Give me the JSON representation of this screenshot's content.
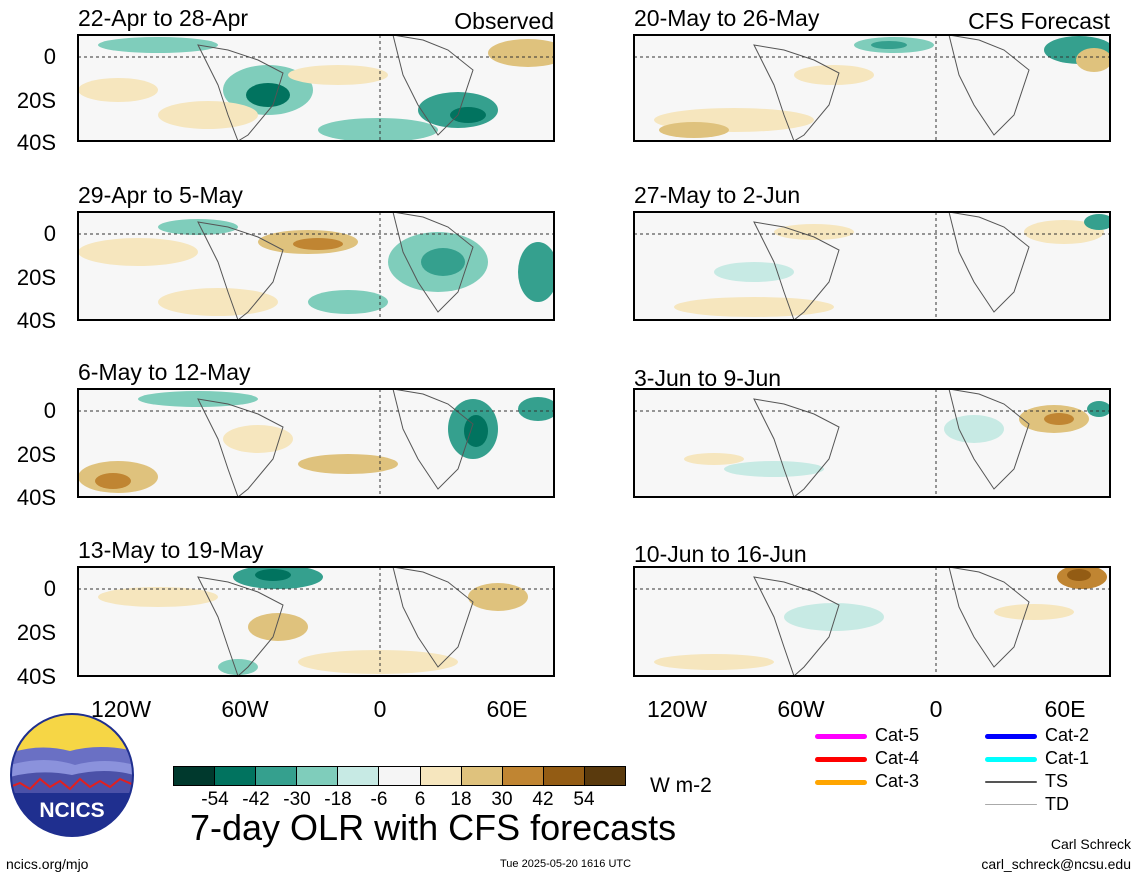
{
  "panels": {
    "observed": [
      {
        "title": "22-Apr to 28-Apr",
        "tag": "Observed"
      },
      {
        "title": "29-Apr to 5-May",
        "tag": ""
      },
      {
        "title": "6-May to 12-May",
        "tag": ""
      },
      {
        "title": "13-May to 19-May",
        "tag": ""
      }
    ],
    "forecast": [
      {
        "title": "20-May to 26-May",
        "tag": "CFS Forecast"
      },
      {
        "title": "27-May to 2-Jun",
        "tag": ""
      },
      {
        "title": "3-Jun to 9-Jun",
        "tag": ""
      },
      {
        "title": "10-Jun to 16-Jun",
        "tag": ""
      }
    ]
  },
  "y_axis_labels": [
    "0",
    "20S",
    "40S"
  ],
  "x_axis_labels": [
    "120W",
    "60W",
    "0",
    "60E"
  ],
  "colorbar": {
    "colors": [
      "#00392d",
      "#01735f",
      "#35a08e",
      "#7fcdbb",
      "#c7eae4",
      "#f5f5f5",
      "#f6e6be",
      "#dfc27d",
      "#c08532",
      "#935c14",
      "#5a3a0d"
    ],
    "ticks": [
      "-54",
      "-42",
      "-30",
      "-18",
      "-6",
      "6",
      "18",
      "30",
      "42",
      "54"
    ],
    "unit": "W m-2"
  },
  "legend": [
    {
      "label": "Cat-5",
      "color": "#ff00ff"
    },
    {
      "label": "Cat-4",
      "color": "#ff0000"
    },
    {
      "label": "Cat-3",
      "color": "#ffa500"
    },
    {
      "label": "Cat-2",
      "color": "#0000ff"
    },
    {
      "label": "Cat-1",
      "color": "#00ffff"
    },
    {
      "label": "TS",
      "color": "#555555"
    },
    {
      "label": "TD",
      "color": "#aaaaaa"
    }
  ],
  "logo_text": "NCICS",
  "main_title": "7-day OLR with CFS forecasts",
  "footer": {
    "left": "ncics.org/mjo",
    "center": "Tue 2025-05-20 1616 UTC",
    "right_name": "Carl Schreck",
    "right_email": "carl_schreck@ncsu.edu"
  }
}
